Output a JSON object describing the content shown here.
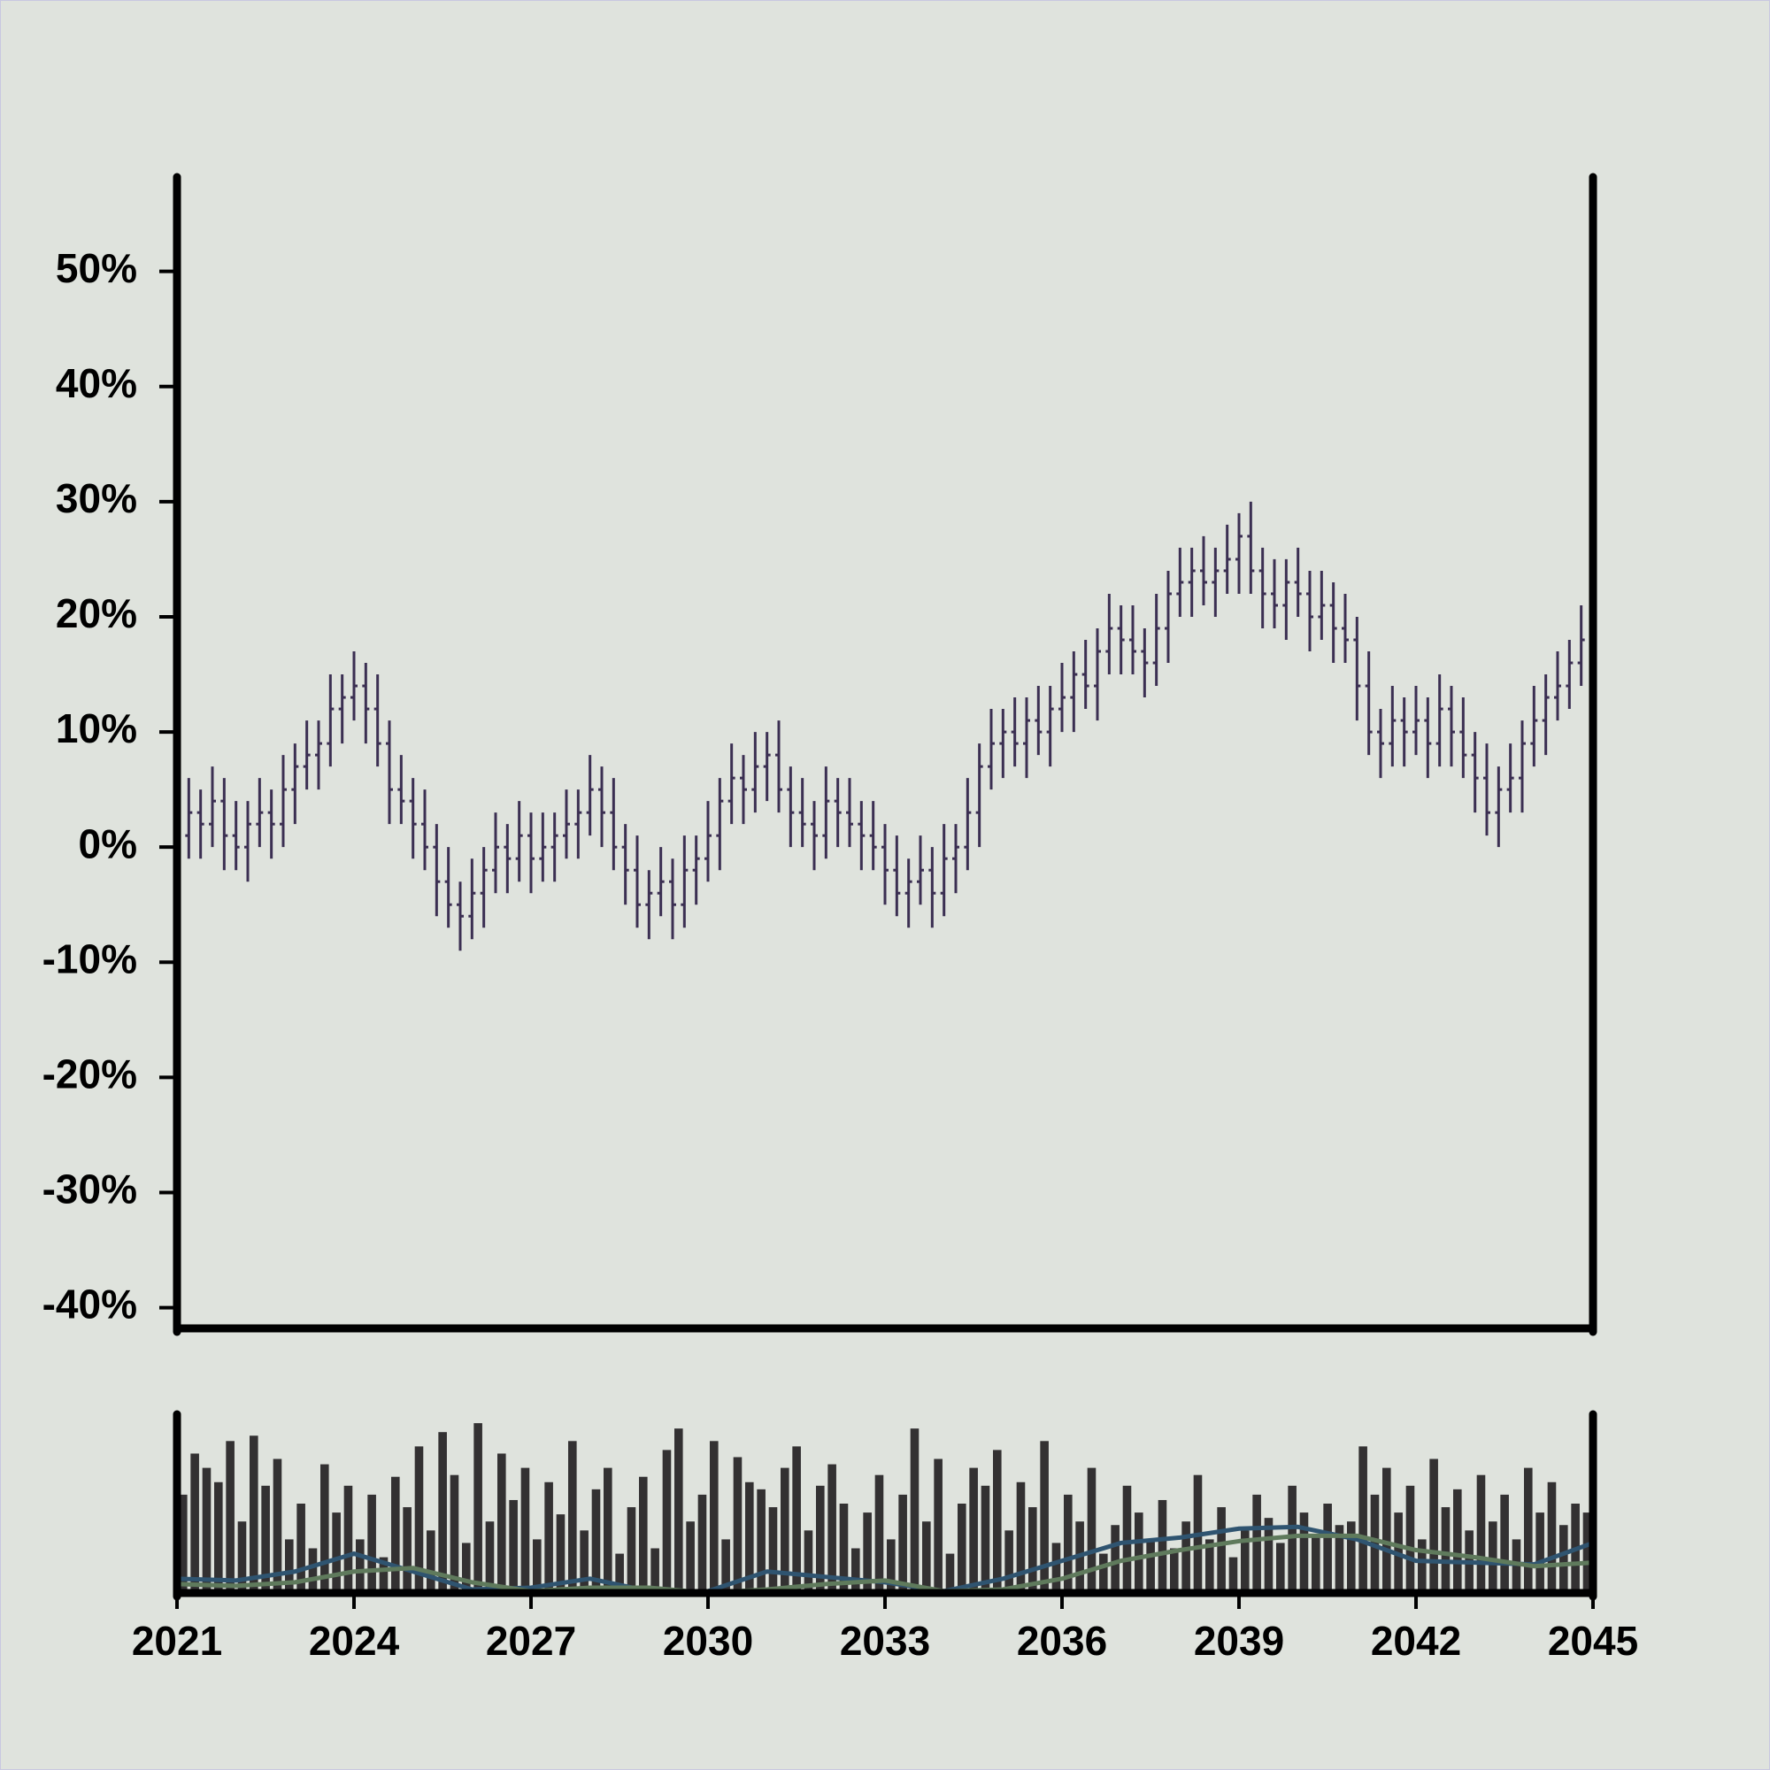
{
  "chart_data": [
    {
      "type": "ohlc",
      "color": "#3b2f52",
      "x": [
        2021,
        2021.2,
        2021.4,
        2021.6,
        2021.8,
        2022,
        2022.2,
        2022.4,
        2022.6,
        2022.8,
        2023,
        2023.2,
        2023.4,
        2023.6,
        2023.8,
        2024,
        2024.2,
        2024.4,
        2024.6,
        2024.8,
        2025,
        2025.2,
        2025.4,
        2025.6,
        2025.8,
        2026,
        2026.2,
        2026.4,
        2026.6,
        2026.8,
        2027,
        2027.2,
        2027.4,
        2027.6,
        2027.8,
        2028,
        2028.2,
        2028.4,
        2028.6,
        2028.8,
        2029,
        2029.2,
        2029.4,
        2029.6,
        2029.8,
        2030,
        2030.2,
        2030.4,
        2030.6,
        2030.8,
        2031,
        2031.2,
        2031.4,
        2031.6,
        2031.8,
        2032,
        2032.2,
        2032.4,
        2032.6,
        2032.8,
        2033,
        2033.2,
        2033.4,
        2033.6,
        2033.8,
        2034,
        2034.2,
        2034.4,
        2034.6,
        2034.8,
        2035,
        2035.2,
        2035.4,
        2035.6,
        2035.8,
        2036,
        2036.2,
        2036.4,
        2036.6,
        2036.8,
        2037,
        2037.2,
        2037.4,
        2037.6,
        2037.8,
        2038,
        2038.2,
        2038.4,
        2038.6,
        2038.8,
        2039,
        2039.2,
        2039.4,
        2039.6,
        2039.8,
        2040,
        2040.2,
        2040.4,
        2040.6,
        2040.8,
        2041,
        2041.2,
        2041.4,
        2041.6,
        2041.8,
        2042,
        2042.2,
        2042.4,
        2042.6,
        2042.8,
        2043,
        2043.2,
        2043.4,
        2043.6,
        2043.8,
        2044,
        2044.2,
        2044.4,
        2044.6,
        2044.8
      ],
      "open": [
        0,
        1,
        3,
        2,
        4,
        1,
        0,
        2,
        3,
        2,
        5,
        7,
        8,
        9,
        12,
        13,
        14,
        12,
        9,
        5,
        4,
        2,
        0,
        -3,
        -5,
        -6,
        -4,
        -2,
        0,
        -1,
        1,
        -1,
        0,
        1,
        2,
        3,
        5,
        3,
        0,
        -2,
        -5,
        -4,
        -3,
        -5,
        -2,
        -1,
        1,
        4,
        6,
        5,
        7,
        8,
        5,
        3,
        2,
        1,
        4,
        3,
        2,
        1,
        0,
        -2,
        -4,
        -3,
        -2,
        -4,
        -1,
        0,
        3,
        7,
        9,
        10,
        9,
        11,
        10,
        12,
        13,
        15,
        14,
        17,
        19,
        18,
        17,
        16,
        19,
        22,
        23,
        24,
        23,
        24,
        25,
        27,
        24,
        22,
        21,
        23,
        22,
        20,
        21,
        19,
        18,
        14,
        10,
        9,
        11,
        10,
        11,
        9,
        12,
        10,
        8,
        6,
        3,
        5,
        6,
        9,
        11,
        13,
        14,
        16
      ],
      "high": [
        3,
        6,
        5,
        7,
        6,
        4,
        4,
        6,
        5,
        8,
        9,
        11,
        11,
        15,
        15,
        17,
        16,
        15,
        11,
        8,
        6,
        5,
        2,
        0,
        -3,
        -1,
        0,
        3,
        2,
        4,
        3,
        3,
        3,
        5,
        5,
        8,
        7,
        6,
        2,
        1,
        -2,
        0,
        -1,
        1,
        1,
        4,
        6,
        9,
        8,
        10,
        10,
        11,
        7,
        6,
        4,
        7,
        6,
        6,
        4,
        4,
        2,
        1,
        -1,
        1,
        0,
        2,
        2,
        6,
        9,
        12,
        12,
        13,
        13,
        14,
        14,
        16,
        17,
        18,
        19,
        22,
        21,
        21,
        19,
        22,
        24,
        26,
        26,
        27,
        26,
        28,
        29,
        30,
        26,
        25,
        25,
        26,
        24,
        24,
        23,
        22,
        20,
        17,
        12,
        14,
        13,
        14,
        13,
        15,
        14,
        13,
        10,
        9,
        7,
        9,
        11,
        14,
        15,
        17,
        18,
        21
      ],
      "low": [
        -3,
        -1,
        -1,
        0,
        -2,
        -2,
        -3,
        0,
        -1,
        0,
        2,
        5,
        5,
        7,
        9,
        11,
        9,
        7,
        2,
        2,
        -1,
        -2,
        -6,
        -7,
        -9,
        -8,
        -7,
        -4,
        -4,
        -3,
        -4,
        -3,
        -3,
        -1,
        -1,
        1,
        0,
        -2,
        -5,
        -7,
        -8,
        -6,
        -8,
        -7,
        -5,
        -3,
        -2,
        2,
        2,
        3,
        4,
        3,
        0,
        0,
        -2,
        -1,
        0,
        0,
        -2,
        -2,
        -5,
        -6,
        -7,
        -5,
        -7,
        -6,
        -4,
        -2,
        0,
        5,
        6,
        7,
        6,
        8,
        7,
        10,
        10,
        12,
        11,
        15,
        15,
        15,
        13,
        14,
        16,
        20,
        20,
        21,
        20,
        22,
        22,
        22,
        19,
        19,
        18,
        20,
        17,
        18,
        16,
        16,
        11,
        8,
        6,
        7,
        7,
        8,
        6,
        7,
        7,
        6,
        3,
        1,
        0,
        3,
        3,
        7,
        8,
        11,
        12,
        14
      ],
      "close": [
        1,
        3,
        2,
        4,
        1,
        0,
        2,
        3,
        2,
        5,
        7,
        8,
        9,
        12,
        13,
        14,
        12,
        9,
        5,
        4,
        2,
        0,
        -3,
        -5,
        -6,
        -4,
        -2,
        0,
        -1,
        1,
        -1,
        0,
        1,
        2,
        3,
        5,
        3,
        0,
        -2,
        -5,
        -4,
        -3,
        -5,
        -2,
        -1,
        1,
        4,
        6,
        5,
        7,
        8,
        5,
        3,
        2,
        1,
        4,
        3,
        2,
        1,
        0,
        -2,
        -4,
        -3,
        -2,
        -4,
        -1,
        0,
        3,
        7,
        9,
        10,
        9,
        11,
        10,
        12,
        13,
        15,
        14,
        17,
        19,
        18,
        17,
        16,
        19,
        22,
        23,
        24,
        23,
        24,
        25,
        27,
        24,
        22,
        21,
        23,
        22,
        20,
        21,
        19,
        18,
        14,
        10,
        9,
        11,
        10,
        11,
        9,
        12,
        10,
        8,
        6,
        3,
        5,
        6,
        9,
        11,
        13,
        14,
        16,
        18
      ],
      "xlim": [
        2021,
        2045
      ],
      "ylim": [
        -41.8,
        58.2
      ],
      "yticks": [
        {
          "value": -40,
          "label": "-40%"
        },
        {
          "value": -30,
          "label": "-30%"
        },
        {
          "value": -20,
          "label": "-20%"
        },
        {
          "value": -10,
          "label": "-10%"
        },
        {
          "value": 0,
          "label": "0%"
        },
        {
          "value": 10,
          "label": "10%"
        },
        {
          "value": 20,
          "label": "20%"
        },
        {
          "value": 30,
          "label": "30%"
        },
        {
          "value": 40,
          "label": "40%"
        },
        {
          "value": 50,
          "label": "50%"
        }
      ]
    },
    {
      "type": "bar",
      "color": "#333132",
      "x": [
        2021,
        2021.2,
        2021.4,
        2021.6,
        2021.8,
        2022,
        2022.2,
        2022.4,
        2022.6,
        2022.8,
        2023,
        2023.2,
        2023.4,
        2023.6,
        2023.8,
        2024,
        2024.2,
        2024.4,
        2024.6,
        2024.8,
        2025,
        2025.2,
        2025.4,
        2025.6,
        2025.8,
        2026,
        2026.2,
        2026.4,
        2026.6,
        2026.8,
        2027,
        2027.2,
        2027.4,
        2027.6,
        2027.8,
        2028,
        2028.2,
        2028.4,
        2028.6,
        2028.8,
        2029,
        2029.2,
        2029.4,
        2029.6,
        2029.8,
        2030,
        2030.2,
        2030.4,
        2030.6,
        2030.8,
        2031,
        2031.2,
        2031.4,
        2031.6,
        2031.8,
        2032,
        2032.2,
        2032.4,
        2032.6,
        2032.8,
        2033,
        2033.2,
        2033.4,
        2033.6,
        2033.8,
        2034,
        2034.2,
        2034.4,
        2034.6,
        2034.8,
        2035,
        2035.2,
        2035.4,
        2035.6,
        2035.8,
        2036,
        2036.2,
        2036.4,
        2036.6,
        2036.8,
        2037,
        2037.2,
        2037.4,
        2037.6,
        2037.8,
        2038,
        2038.2,
        2038.4,
        2038.6,
        2038.8,
        2039,
        2039.2,
        2039.4,
        2039.6,
        2039.8,
        2040,
        2040.2,
        2040.4,
        2040.6,
        2040.8,
        2041,
        2041.2,
        2041.4,
        2041.6,
        2041.8,
        2042,
        2042.2,
        2042.4,
        2042.6,
        2042.8,
        2043,
        2043.2,
        2043.4,
        2043.6,
        2043.8,
        2044,
        2044.2,
        2044.4,
        2044.6,
        2044.8
      ],
      "values": [
        55,
        78,
        70,
        62,
        85,
        40,
        88,
        60,
        75,
        30,
        50,
        25,
        72,
        45,
        60,
        30,
        55,
        20,
        65,
        48,
        82,
        35,
        90,
        66,
        28,
        95,
        40,
        78,
        52,
        70,
        30,
        62,
        44,
        85,
        35,
        58,
        70,
        22,
        48,
        65,
        25,
        80,
        92,
        40,
        55,
        85,
        30,
        76,
        62,
        58,
        48,
        70,
        82,
        35,
        60,
        72,
        50,
        25,
        45,
        66,
        30,
        55,
        92,
        40,
        75,
        22,
        50,
        70,
        60,
        80,
        35,
        62,
        48,
        85,
        28,
        55,
        40,
        70,
        22,
        38,
        60,
        45,
        30,
        52,
        25,
        40,
        66,
        30,
        48,
        20,
        35,
        55,
        42,
        28,
        60,
        45,
        32,
        50,
        38,
        40,
        82,
        55,
        70,
        45,
        60,
        30,
        75,
        48,
        58,
        35,
        66,
        40,
        55,
        30,
        70,
        45,
        62,
        38,
        50,
        45
      ],
      "xlim": [
        2021,
        2045
      ],
      "ylim": [
        0,
        100
      ],
      "xticks": [
        2021,
        2024,
        2027,
        2030,
        2033,
        2036,
        2039,
        2042,
        2045
      ],
      "overlays": [
        {
          "color": "#2f5470",
          "x": [
            2021,
            2022,
            2023,
            2024,
            2025,
            2026,
            2027,
            2028,
            2029,
            2030,
            2031,
            2032,
            2033,
            2034,
            2035,
            2036,
            2037,
            2038,
            2039,
            2040,
            2041,
            2042,
            2043,
            2044,
            2045
          ],
          "values": [
            8,
            7,
            12,
            22,
            12,
            2,
            3,
            8,
            1,
            1,
            12,
            9,
            6,
            1,
            8,
            18,
            28,
            31,
            36,
            37,
            30,
            18,
            17,
            16,
            28
          ]
        },
        {
          "color": "#5f7a5c",
          "x": [
            2021,
            2022,
            2023,
            2024,
            2025,
            2026,
            2027,
            2028,
            2029,
            2030,
            2031,
            2032,
            2033,
            2034,
            2035,
            2036,
            2037,
            2038,
            2039,
            2040,
            2041,
            2042,
            2043,
            2044,
            2045
          ],
          "values": [
            5,
            4,
            6,
            12,
            14,
            6,
            1,
            3,
            3,
            0,
            2,
            5,
            7,
            1,
            2,
            8,
            18,
            24,
            29,
            32,
            32,
            24,
            20,
            15,
            17
          ]
        }
      ]
    }
  ]
}
